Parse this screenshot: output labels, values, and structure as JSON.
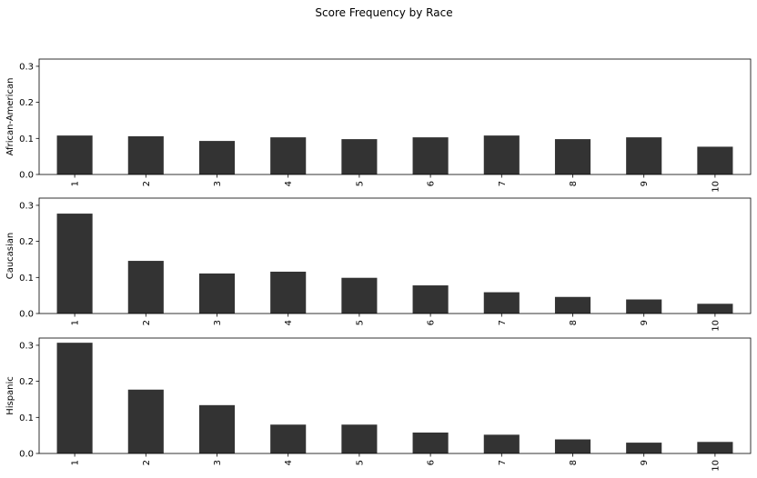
{
  "chart_data": {
    "type": "bar",
    "title": "Score Frequency by Race",
    "categories": [
      "1",
      "2",
      "3",
      "4",
      "5",
      "6",
      "7",
      "8",
      "9",
      "10"
    ],
    "ylim": [
      0,
      0.32
    ],
    "yticks": [
      "0.0",
      "0.1",
      "0.2",
      "0.3"
    ],
    "bar_color": "#333333",
    "grid": false,
    "legend": "none",
    "series": [
      {
        "name": "African-American",
        "values": [
          0.108,
          0.106,
          0.093,
          0.103,
          0.098,
          0.103,
          0.108,
          0.098,
          0.103,
          0.077
        ]
      },
      {
        "name": "Caucasian",
        "values": [
          0.277,
          0.146,
          0.111,
          0.116,
          0.099,
          0.078,
          0.059,
          0.046,
          0.039,
          0.027
        ]
      },
      {
        "name": "Hispanic",
        "values": [
          0.307,
          0.177,
          0.134,
          0.08,
          0.08,
          0.058,
          0.052,
          0.039,
          0.03,
          0.032
        ]
      }
    ]
  }
}
